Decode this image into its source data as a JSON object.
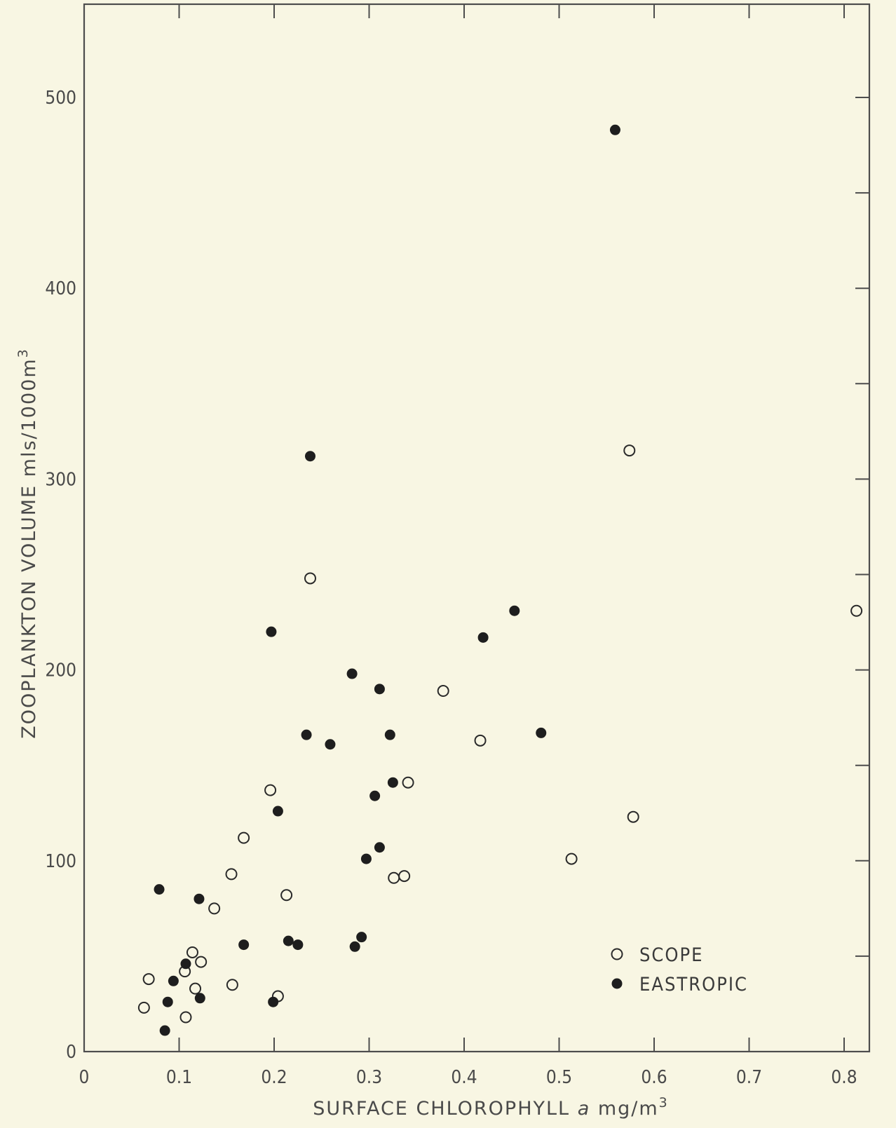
{
  "chart_data": {
    "type": "scatter",
    "title": "",
    "xlabel_parts": [
      "SURFACE CHLOROPHYLL ",
      "a",
      " mg/m",
      "3"
    ],
    "ylabel_parts": [
      "ZOOPLANKTON VOLUME  mls/1000m",
      "3"
    ],
    "xlim": [
      0,
      0.85
    ],
    "ylim": [
      0,
      500
    ],
    "y_display_max": 550,
    "x_ticks": [
      0,
      0.1,
      0.2,
      0.3,
      0.4,
      0.5,
      0.6,
      0.7,
      0.8
    ],
    "x_tick_labels": [
      "0",
      "0.1",
      "0.2",
      "0.3",
      "0.4",
      "0.5",
      "0.6",
      "0.7",
      "0.8"
    ],
    "y_ticks": [
      0,
      100,
      200,
      300,
      400,
      500
    ],
    "y_tick_labels": [
      "0",
      "100",
      "200",
      "300",
      "400",
      "500"
    ],
    "y_minor_ticks": [
      50,
      150,
      250,
      350,
      450
    ],
    "grid": false,
    "legend_position": "bottom-right",
    "series": [
      {
        "name": "SCOPE",
        "marker": "open-circle",
        "color": "#2a2a2a",
        "points": [
          [
            0.063,
            23
          ],
          [
            0.068,
            38
          ],
          [
            0.106,
            42
          ],
          [
            0.107,
            18
          ],
          [
            0.114,
            52
          ],
          [
            0.117,
            33
          ],
          [
            0.123,
            47
          ],
          [
            0.137,
            75
          ],
          [
            0.155,
            93
          ],
          [
            0.156,
            35
          ],
          [
            0.168,
            112
          ],
          [
            0.196,
            137
          ],
          [
            0.204,
            29
          ],
          [
            0.213,
            82
          ],
          [
            0.238,
            248
          ],
          [
            0.326,
            91
          ],
          [
            0.337,
            92
          ],
          [
            0.341,
            141
          ],
          [
            0.378,
            189
          ],
          [
            0.417,
            163
          ],
          [
            0.513,
            101
          ],
          [
            0.574,
            315
          ],
          [
            0.578,
            123
          ],
          [
            0.813,
            231
          ]
        ]
      },
      {
        "name": "EASTROPIC",
        "marker": "filled-circle",
        "color": "#1e1e1e",
        "points": [
          [
            0.079,
            85
          ],
          [
            0.085,
            11
          ],
          [
            0.088,
            26
          ],
          [
            0.094,
            37
          ],
          [
            0.107,
            46
          ],
          [
            0.121,
            80
          ],
          [
            0.122,
            28
          ],
          [
            0.168,
            56
          ],
          [
            0.197,
            220
          ],
          [
            0.199,
            26
          ],
          [
            0.204,
            126
          ],
          [
            0.215,
            58
          ],
          [
            0.225,
            56
          ],
          [
            0.234,
            166
          ],
          [
            0.238,
            312
          ],
          [
            0.259,
            161
          ],
          [
            0.282,
            198
          ],
          [
            0.285,
            55
          ],
          [
            0.292,
            60
          ],
          [
            0.297,
            101
          ],
          [
            0.306,
            134
          ],
          [
            0.311,
            190
          ],
          [
            0.311,
            107
          ],
          [
            0.322,
            166
          ],
          [
            0.325,
            141
          ],
          [
            0.42,
            217
          ],
          [
            0.453,
            231
          ],
          [
            0.481,
            167
          ],
          [
            0.559,
            483
          ]
        ]
      }
    ]
  }
}
